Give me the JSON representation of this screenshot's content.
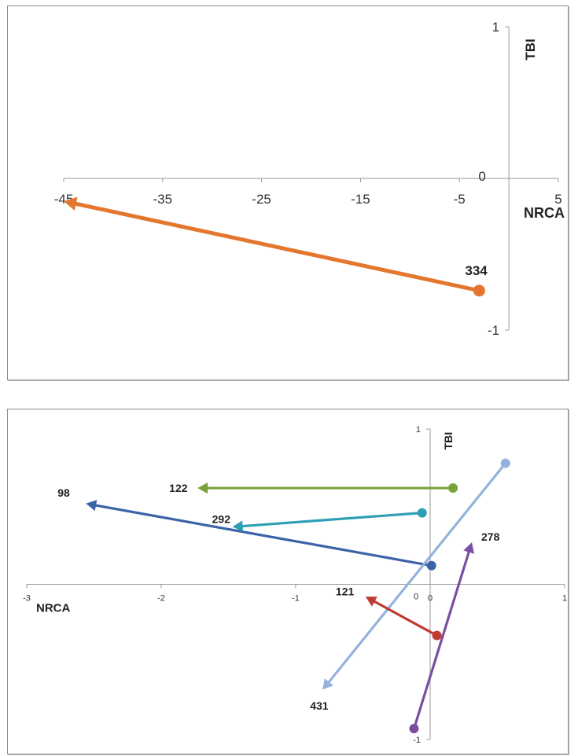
{
  "chart_data": [
    {
      "type": "line",
      "xlabel": "NRCA",
      "ylabel": "TBI",
      "xlim": [
        -45,
        5
      ],
      "ylim": [
        -1,
        1
      ],
      "x_ticks": [
        "-45",
        "-35",
        "-25",
        "-15",
        "-5",
        "5"
      ],
      "y_ticks": [
        "1",
        "0",
        "-1"
      ],
      "grid": false,
      "legend": "none",
      "series": [
        {
          "name": "334",
          "color": "#e4772f",
          "from": [
            -3,
            -0.74
          ],
          "to": [
            -45,
            -0.15
          ]
        }
      ]
    },
    {
      "type": "line",
      "xlabel": "NRCA",
      "ylabel": "TBI",
      "xlim": [
        -3,
        1
      ],
      "ylim": [
        -1,
        1
      ],
      "x_ticks": [
        "-3",
        "-2",
        "-1",
        "0",
        "1"
      ],
      "y_ticks": [
        "1",
        "0",
        "-1"
      ],
      "grid": false,
      "legend": "none",
      "series": [
        {
          "name": "122",
          "color": "#77a33a",
          "from": [
            0.17,
            0.62
          ],
          "to": [
            -1.73,
            0.62
          ]
        },
        {
          "name": "98",
          "color": "#3b63a8",
          "from": [
            0.01,
            0.12
          ],
          "to": [
            -2.56,
            0.52
          ]
        },
        {
          "name": "292",
          "color": "#2f9fb5",
          "from": [
            -0.06,
            0.46
          ],
          "to": [
            -1.47,
            0.37
          ]
        },
        {
          "name": "431",
          "color": "#94b2dc",
          "from": [
            0.56,
            0.78
          ],
          "to": [
            -0.8,
            -0.68
          ]
        },
        {
          "name": "121",
          "color": "#bf3b34",
          "from": [
            0.05,
            -0.33
          ],
          "to": [
            -0.48,
            -0.08
          ]
        },
        {
          "name": "278",
          "color": "#7a4fa1",
          "from": [
            -0.12,
            -0.93
          ],
          "to": [
            0.31,
            0.27
          ]
        }
      ]
    }
  ]
}
